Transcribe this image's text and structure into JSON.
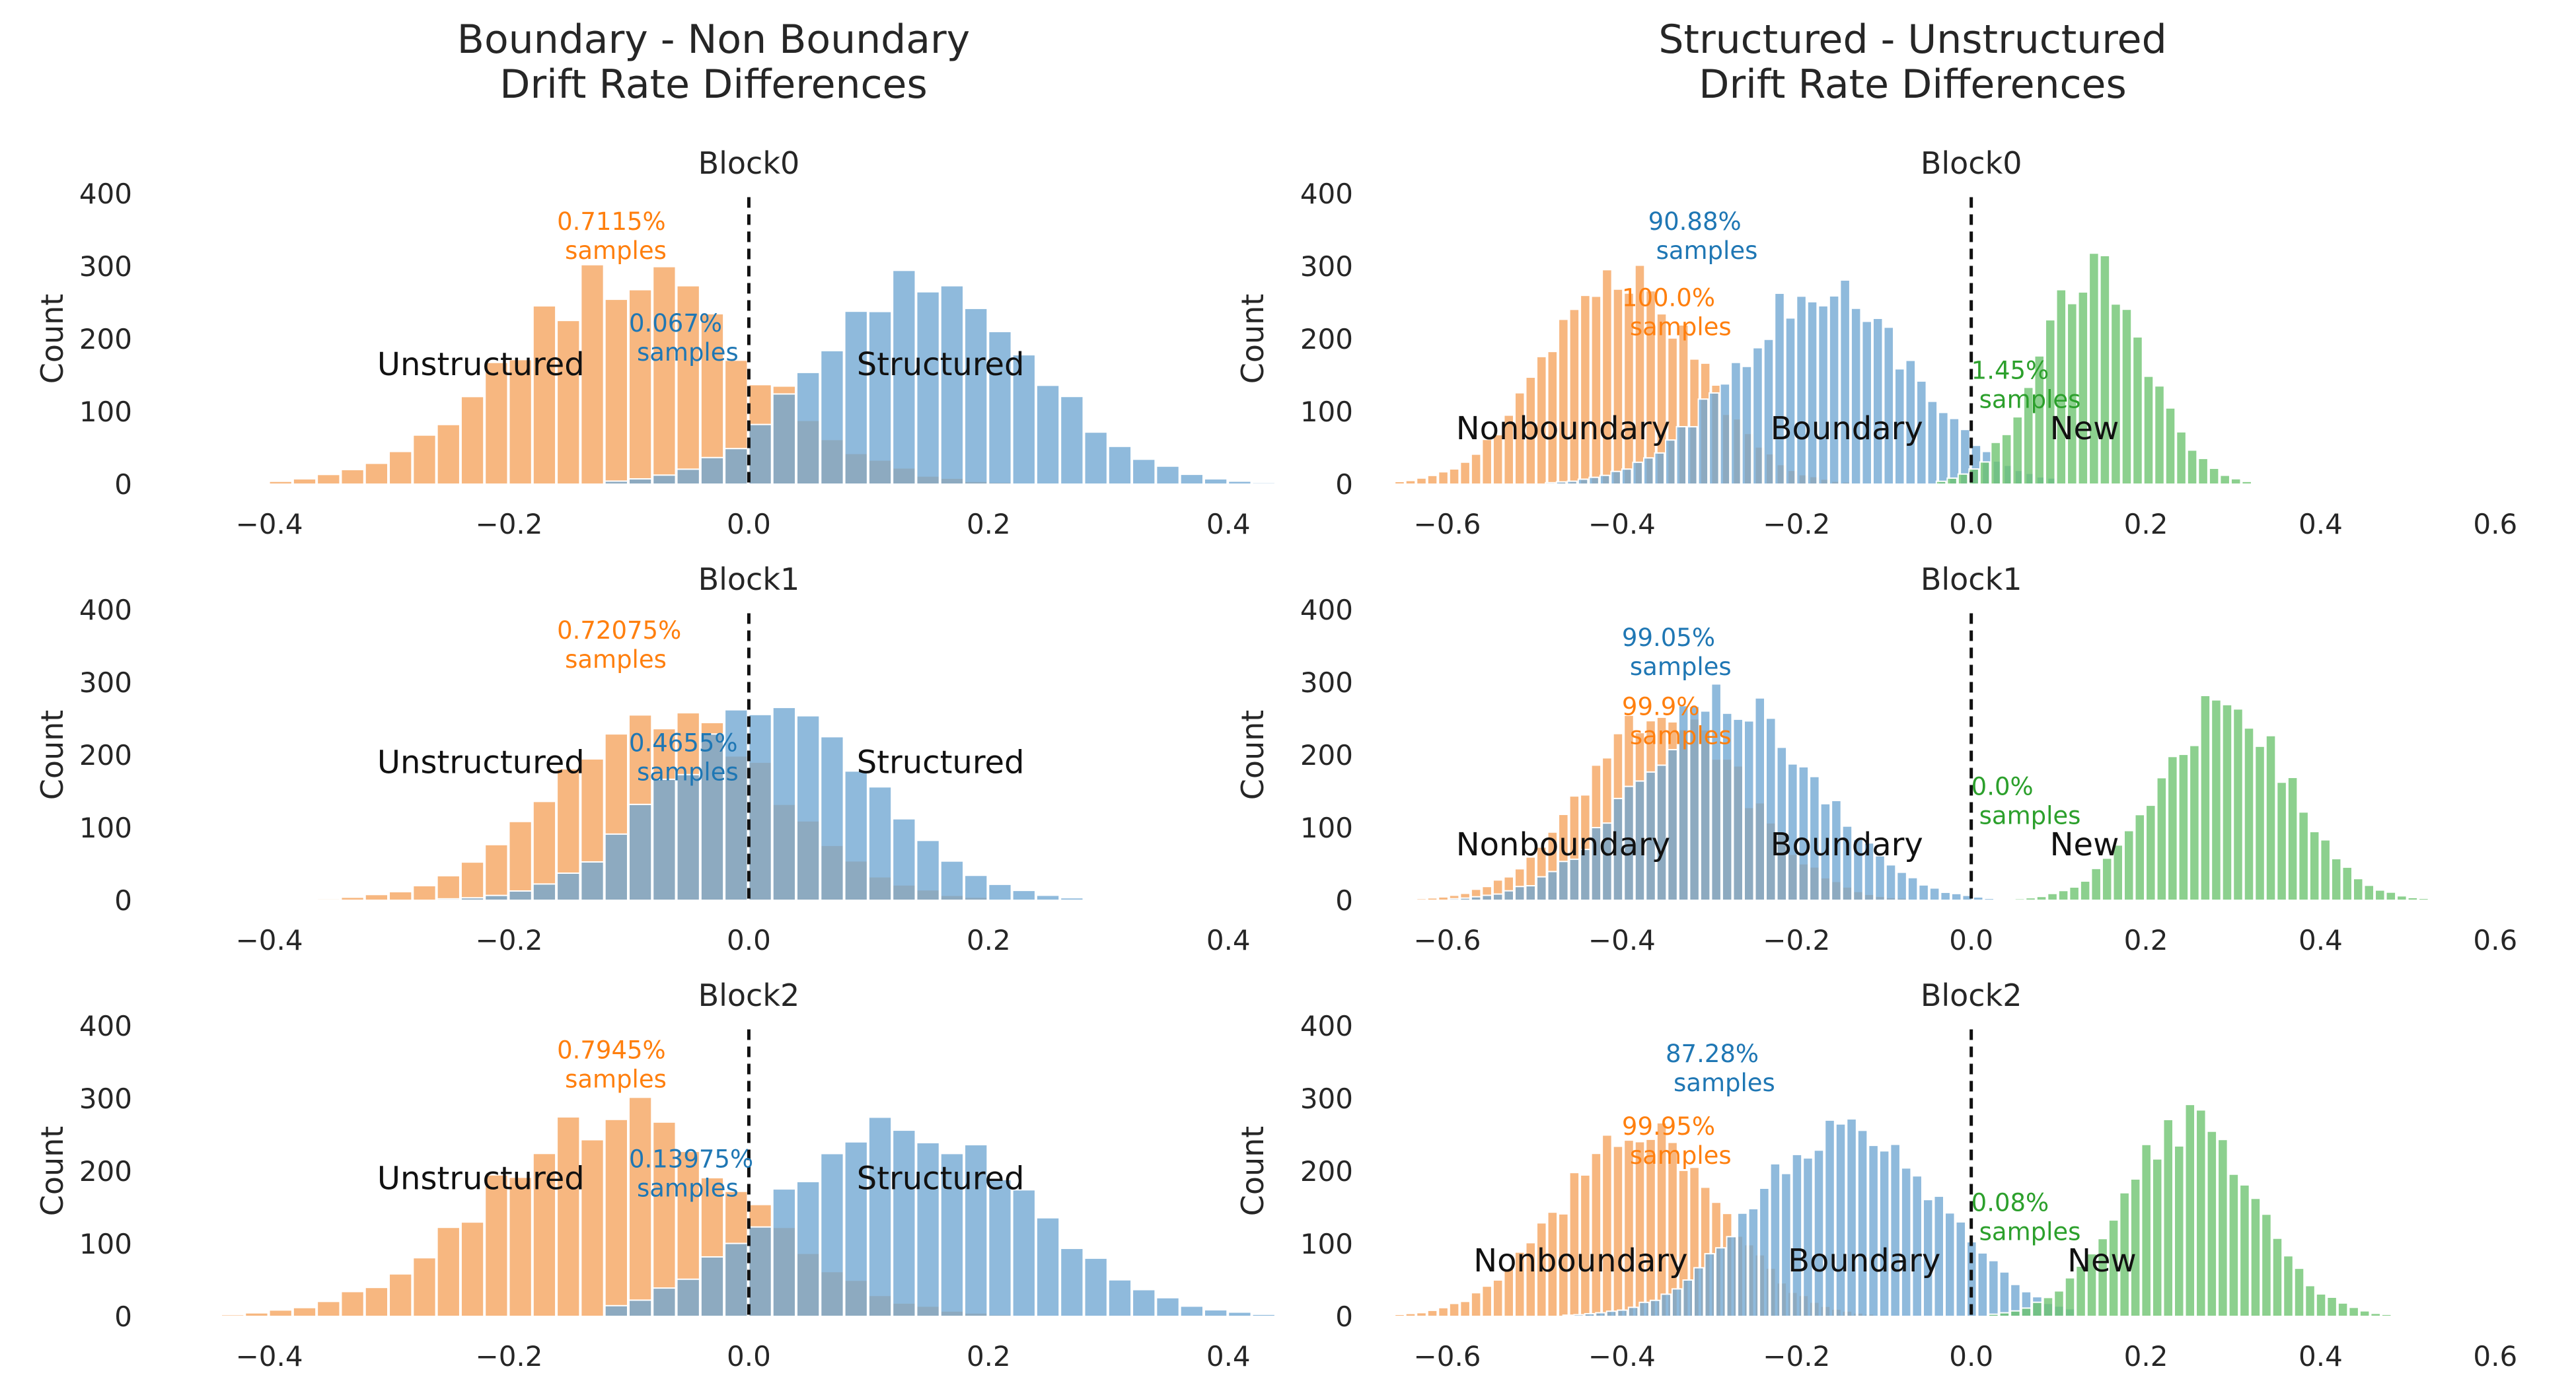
{
  "figure": {
    "left_title": "Boundary - Non Boundary\nDrift Rate Differences",
    "right_title": "Structured - Unstructured\nDrift Rate Differences"
  },
  "colors": {
    "orange": "#f5a35c",
    "blue": "#6fa6d2",
    "green": "#6cc36e",
    "orange_text": "#ff7f0e",
    "blue_text": "#1f77b4",
    "green_text": "#2ca02c"
  },
  "chart_data": [
    {
      "type": "histogram",
      "title": "Block0",
      "ylabel": "Count",
      "yticks": [
        "0",
        "100",
        "200",
        "300",
        "400"
      ],
      "xticks": [
        "−0.4",
        "−0.2",
        "0.0",
        "0.2",
        "0.4"
      ],
      "xlim": [
        -0.44,
        0.45
      ],
      "ylim": [
        0,
        400
      ],
      "series": [
        {
          "label_text": "Unstructured",
          "percent_text": "0.7115%",
          "samples_text": "samples",
          "color_key": "orange",
          "text_key": "orange_text",
          "mean": -0.1,
          "sd": 0.1,
          "peak": 285,
          "range": [
            -0.4,
            0.24
          ]
        },
        {
          "label_text": "Structured",
          "percent_text": "0.067%",
          "samples_text": "samples",
          "color_key": "blue",
          "text_key": "blue_text",
          "mean": 0.15,
          "sd": 0.09,
          "peak": 270,
          "range": [
            -0.12,
            0.44
          ]
        }
      ]
    },
    {
      "type": "histogram",
      "title": "Block1",
      "ylabel": "Count",
      "yticks": [
        "0",
        "100",
        "200",
        "300",
        "400"
      ],
      "xticks": [
        "−0.4",
        "−0.2",
        "0.0",
        "0.2",
        "0.4"
      ],
      "xlim": [
        -0.44,
        0.45
      ],
      "ylim": [
        0,
        400
      ],
      "series": [
        {
          "label_text": "Unstructured",
          "percent_text": "0.72075%",
          "samples_text": "samples",
          "color_key": "orange",
          "text_key": "orange_text",
          "mean": -0.07,
          "sd": 0.09,
          "peak": 255,
          "range": [
            -0.4,
            0.2
          ]
        },
        {
          "label_text": "Structured",
          "percent_text": "0.4655%",
          "samples_text": "samples",
          "color_key": "blue",
          "text_key": "blue_text",
          "mean": 0.02,
          "sd": 0.085,
          "peak": 275,
          "range": [
            -0.28,
            0.3
          ]
        }
      ]
    },
    {
      "type": "histogram",
      "title": "Block2",
      "ylabel": "Count",
      "yticks": [
        "0",
        "100",
        "200",
        "300",
        "400"
      ],
      "xticks": [
        "−0.4",
        "−0.2",
        "0.0",
        "0.2",
        "0.4"
      ],
      "xlim": [
        -0.44,
        0.45
      ],
      "ylim": [
        0,
        400
      ],
      "series": [
        {
          "label_text": "Unstructured",
          "percent_text": "0.7945%",
          "samples_text": "samples",
          "color_key": "orange",
          "text_key": "orange_text",
          "mean": -0.11,
          "sd": 0.105,
          "peak": 275,
          "range": [
            -0.44,
            0.22
          ]
        },
        {
          "label_text": "Structured",
          "percent_text": "0.13975%",
          "samples_text": "samples",
          "color_key": "blue",
          "text_key": "blue_text",
          "mean": 0.13,
          "sd": 0.1,
          "peak": 265,
          "range": [
            -0.12,
            0.44
          ]
        }
      ]
    },
    {
      "type": "histogram",
      "title": "Block0",
      "ylabel": "Count",
      "yticks": [
        "0",
        "100",
        "200",
        "300",
        "400"
      ],
      "xticks": [
        "−0.6",
        "−0.4",
        "−0.2",
        "0.0",
        "0.2",
        "0.4",
        "0.6"
      ],
      "xlim": [
        -0.67,
        0.61
      ],
      "ylim": [
        0,
        400
      ],
      "series": [
        {
          "label_text": "Nonboundary",
          "percent_text": "100.0%",
          "samples_text": "samples",
          "color_key": "orange",
          "text_key": "orange_text",
          "mean": -0.4,
          "sd": 0.085,
          "peak": 290,
          "range": [
            -0.66,
            -0.12
          ]
        },
        {
          "label_text": "Boundary",
          "percent_text": "90.88%",
          "samples_text": "samples",
          "color_key": "blue",
          "text_key": "blue_text",
          "mean": -0.17,
          "sd": 0.1,
          "peak": 265,
          "range": [
            -0.5,
            0.1
          ]
        },
        {
          "label_text": "New",
          "percent_text": "1.45%",
          "samples_text": "samples",
          "color_key": "green",
          "text_key": "green_text",
          "mean": 0.14,
          "sd": 0.06,
          "peak": 290,
          "range": [
            -0.04,
            0.32
          ]
        }
      ]
    },
    {
      "type": "histogram",
      "title": "Block1",
      "ylabel": "Count",
      "yticks": [
        "0",
        "100",
        "200",
        "300",
        "400"
      ],
      "xticks": [
        "−0.6",
        "−0.4",
        "−0.2",
        "0.0",
        "0.2",
        "0.4",
        "0.6"
      ],
      "xlim": [
        -0.67,
        0.61
      ],
      "ylim": [
        0,
        400
      ],
      "series": [
        {
          "label_text": "Nonboundary",
          "percent_text": "99.9%",
          "samples_text": "samples",
          "color_key": "orange",
          "text_key": "orange_text",
          "mean": -0.35,
          "sd": 0.09,
          "peak": 255,
          "range": [
            -0.66,
            -0.06
          ]
        },
        {
          "label_text": "Boundary",
          "percent_text": "99.05%",
          "samples_text": "samples",
          "color_key": "blue",
          "text_key": "blue_text",
          "mean": -0.28,
          "sd": 0.1,
          "peak": 275,
          "range": [
            -0.66,
            0.02
          ]
        },
        {
          "label_text": "New",
          "percent_text": "0.0%",
          "samples_text": "samples",
          "color_key": "green",
          "text_key": "green_text",
          "mean": 0.29,
          "sd": 0.075,
          "peak": 265,
          "range": [
            0.0,
            0.56
          ]
        }
      ]
    },
    {
      "type": "histogram",
      "title": "Block2",
      "ylabel": "Count",
      "yticks": [
        "0",
        "100",
        "200",
        "300",
        "400"
      ],
      "xticks": [
        "−0.6",
        "−0.4",
        "−0.2",
        "0.0",
        "0.2",
        "0.4",
        "0.6"
      ],
      "xlim": [
        -0.67,
        0.61
      ],
      "ylim": [
        0,
        400
      ],
      "series": [
        {
          "label_text": "Nonboundary",
          "percent_text": "99.95%",
          "samples_text": "samples",
          "color_key": "orange",
          "text_key": "orange_text",
          "mean": -0.38,
          "sd": 0.09,
          "peak": 250,
          "range": [
            -0.66,
            -0.08
          ]
        },
        {
          "label_text": "Boundary",
          "percent_text": "87.28%",
          "samples_text": "samples",
          "color_key": "blue",
          "text_key": "blue_text",
          "mean": -0.14,
          "sd": 0.1,
          "peak": 275,
          "range": [
            -0.48,
            0.12
          ]
        },
        {
          "label_text": "New",
          "percent_text": "0.08%",
          "samples_text": "samples",
          "color_key": "green",
          "text_key": "green_text",
          "mean": 0.25,
          "sd": 0.075,
          "peak": 265,
          "range": [
            0.02,
            0.48
          ]
        }
      ]
    }
  ]
}
